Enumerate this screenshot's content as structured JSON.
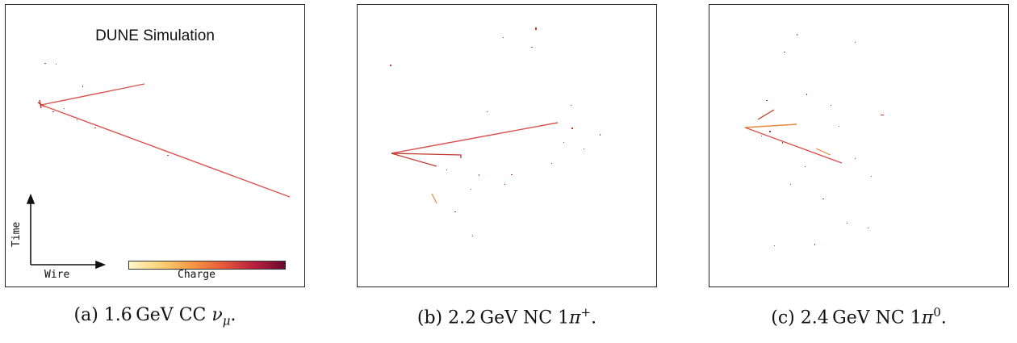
{
  "panels": [
    {
      "id": "a",
      "title": "DUNE Simulation",
      "axis_labels": {
        "time": "Time",
        "wire": "Wire"
      },
      "colorbar_label": "Charge",
      "caption": {
        "tag": "(a)",
        "energy": "1.6",
        "unit": "GeV",
        "text": "CC",
        "particle": "ν",
        "sub": "μ",
        "sup": "",
        "end": "."
      }
    },
    {
      "id": "b",
      "caption": {
        "tag": "(b)",
        "energy": "2.2",
        "unit": "GeV",
        "text": "NC 1",
        "particle": "π",
        "sub": "",
        "sup": "+",
        "end": "."
      }
    },
    {
      "id": "c",
      "caption": {
        "tag": "(c)",
        "energy": "2.4",
        "unit": "GeV",
        "text": "NC 1",
        "particle": "π",
        "sub": "",
        "sup": "0",
        "end": "."
      }
    }
  ],
  "colors": {
    "track": "#d9534f",
    "track_dark": "#a82a3a",
    "hit": "#e7893b"
  }
}
